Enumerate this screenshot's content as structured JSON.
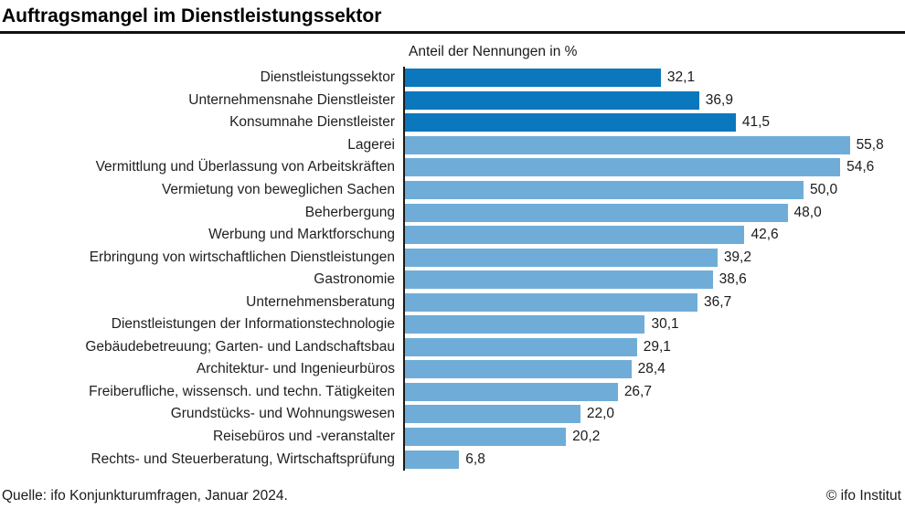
{
  "header": {
    "title": "Auftragsmangel im Dienstleistungssektor"
  },
  "chart_data": {
    "type": "bar",
    "orientation": "horizontal",
    "title": "Anteil der Nennungen in %",
    "categories": [
      "Dienstleistungssektor",
      "Unternehmensnahe Dienstleister",
      "Konsumnahe Dienstleister",
      "Lagerei",
      "Vermittlung und Überlassung von Arbeitskräften",
      "Vermietung von beweglichen Sachen",
      "Beherbergung",
      "Werbung und Marktforschung",
      "Erbringung von wirtschaftlichen Dienstleistungen",
      "Gastronomie",
      "Unternehmensberatung",
      "Dienstleistungen der Informationstechnologie",
      "Gebäudebetreuung; Garten- und Landschaftsbau",
      "Architektur- und Ingenieurbüros",
      "Freiberufliche, wissensch. und techn. Tätigkeiten",
      "Grundstücks- und Wohnungswesen",
      "Reisebüros und -veranstalter",
      "Rechts- und Steuerberatung, Wirtschaftsprüfung"
    ],
    "values": [
      32.1,
      36.9,
      41.5,
      55.8,
      54.6,
      50.0,
      48.0,
      42.6,
      39.2,
      38.6,
      36.7,
      30.1,
      29.1,
      28.4,
      26.7,
      22.0,
      20.2,
      6.8
    ],
    "value_labels": [
      "32,1",
      "36,9",
      "41,5",
      "55,8",
      "54,6",
      "50,0",
      "48,0",
      "42,6",
      "39,2",
      "38,6",
      "36,7",
      "30,1",
      "29,1",
      "28,4",
      "26,7",
      "22,0",
      "20,2",
      "6,8"
    ],
    "highlight_count": 3,
    "colors": {
      "aggregate": "#0b77bd",
      "branch": "#6fadd8"
    },
    "xlim": [
      0,
      57
    ],
    "grid": false,
    "legend": "none"
  },
  "footer": {
    "source": "Quelle: ifo Konjunkturumfragen, Januar 2024.",
    "copyright": "© ifo Institut"
  }
}
